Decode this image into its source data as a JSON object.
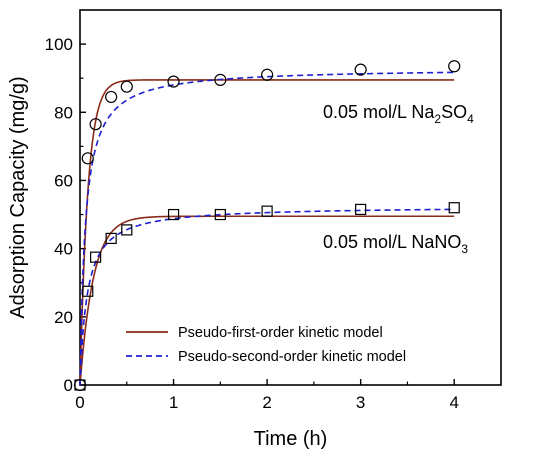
{
  "chart_data": {
    "type": "scatter",
    "xlabel": "Time (h)",
    "ylabel": "Adsorption Capacity (mg/g)",
    "xlim": [
      0,
      4.5
    ],
    "ylim": [
      0,
      110
    ],
    "x_ticks": [
      0,
      1,
      2,
      3,
      4
    ],
    "x_tick_labels": [
      "0",
      "1",
      "2",
      "3",
      "4"
    ],
    "y_ticks": [
      0,
      20,
      40,
      60,
      80,
      100
    ],
    "y_tick_labels": [
      "0",
      "20",
      "40",
      "60",
      "80",
      "100"
    ],
    "grid": false,
    "legend_position": "bottom-center",
    "legend": [
      {
        "label": "Pseudo-first-order kinetic model",
        "color": "#8b2b1a",
        "style": "solid"
      },
      {
        "label": "Pseudo-second-order kinetic model",
        "color": "#1f1fd0",
        "style": "dashed"
      }
    ],
    "annotations": [
      {
        "id": "na2so4",
        "base": "0.05 mol/L Na",
        "sub1": "2",
        "mid": "SO",
        "sub2": "4",
        "near_series": "Na2SO4"
      },
      {
        "id": "nano3",
        "base": "0.05 mol/L NaNO",
        "sub1": "3",
        "mid": "",
        "sub2": "",
        "near_series": "NaNO3"
      }
    ],
    "series": [
      {
        "key": "Na2SO4",
        "marker": "circle",
        "x": [
          0,
          0.083,
          0.167,
          0.333,
          0.5,
          1.0,
          1.5,
          2.0,
          3.0,
          4.0
        ],
        "y": [
          0,
          66.5,
          76.5,
          84.5,
          87.5,
          89.0,
          89.5,
          91.0,
          92.5,
          93.5
        ],
        "pfo": {
          "qe": 89.5,
          "k1": 12
        },
        "pso": {
          "qe": 93.0,
          "k2": 0.19
        }
      },
      {
        "key": "NaNO3",
        "marker": "square",
        "x": [
          0,
          0.083,
          0.167,
          0.333,
          0.5,
          1.0,
          1.5,
          2.0,
          3.0,
          4.0
        ],
        "y": [
          0,
          27.5,
          37.5,
          43.0,
          45.5,
          50.0,
          50.0,
          51.0,
          51.5,
          52.0
        ],
        "pfo": {
          "qe": 49.5,
          "k1": 7
        },
        "pso": {
          "qe": 52.5,
          "k2": 0.25
        }
      }
    ]
  }
}
